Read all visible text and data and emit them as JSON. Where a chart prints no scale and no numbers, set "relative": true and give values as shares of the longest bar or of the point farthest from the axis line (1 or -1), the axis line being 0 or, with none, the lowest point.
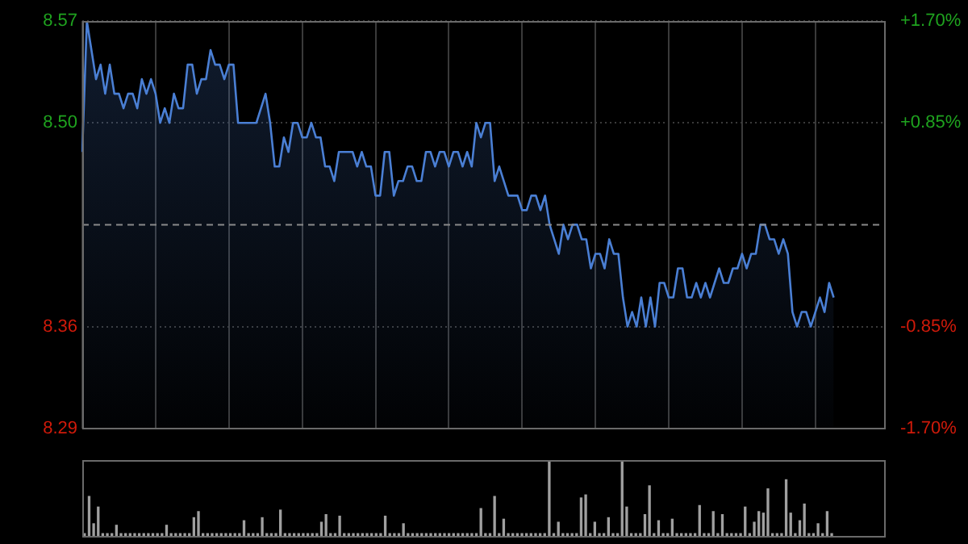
{
  "chart_data": [
    {
      "type": "area",
      "categories": [
        null,
        null,
        null,
        null,
        null,
        null,
        null,
        null,
        null,
        null,
        null,
        null,
        null,
        null,
        null,
        null,
        null,
        null,
        null,
        null,
        null,
        null,
        null,
        null,
        null,
        null,
        null,
        null,
        null,
        null,
        null,
        null,
        null,
        null,
        null,
        null,
        null,
        null,
        null,
        null,
        null,
        null,
        null,
        null,
        null,
        null,
        null,
        null,
        null,
        null,
        null,
        null,
        null,
        null,
        null,
        null,
        null,
        null,
        null,
        null,
        null,
        null,
        null,
        null,
        null,
        null,
        null,
        null,
        null,
        null,
        null,
        null,
        null,
        null,
        null,
        null,
        null,
        null,
        null,
        null,
        null,
        null,
        null,
        null,
        null,
        null,
        null,
        null,
        null,
        null,
        null,
        null,
        null,
        null,
        null,
        null,
        null,
        null,
        null,
        null,
        null,
        null,
        null,
        null,
        null,
        null,
        null,
        null,
        null,
        null,
        null,
        null,
        null,
        null,
        null,
        null,
        null,
        null,
        null,
        null,
        null,
        null,
        null,
        null,
        null,
        null,
        null,
        null,
        null,
        null,
        null,
        null,
        null,
        null,
        null,
        null,
        null,
        null,
        null,
        null,
        null,
        null,
        null,
        null,
        null,
        null,
        null,
        null,
        null,
        null,
        null,
        null,
        null,
        null,
        null,
        null,
        null,
        null,
        null,
        null,
        null,
        null,
        null,
        null,
        null,
        null,
        null,
        null,
        null,
        null,
        null,
        null,
        null,
        null,
        null,
        null
      ],
      "ylim": [
        8.29,
        8.57
      ],
      "yticks": [
        8.29,
        8.36,
        {
          "value": 8.5,
          "label": "8.50"
        },
        8.57
      ],
      "y2lim": [
        -1.7,
        1.7
      ],
      "y2ticks": [
        {
          "value": -1.7,
          "label": "-1.70%"
        },
        {
          "value": -0.85,
          "label": "-0.85%"
        },
        {
          "value": 0.85,
          "label": "+0.85%"
        },
        {
          "value": 1.7,
          "label": "+1.70%"
        }
      ],
      "tick_labels": "y",
      "grid": true,
      "ref_lines": [
        {
          "axis": "y",
          "value": 8.43,
          "line_style": "dashed",
          "color": "#8a8a8a"
        }
      ],
      "series": [
        {
          "color": "#4a7fd4",
          "values": [
            8.48,
            8.57,
            8.55,
            8.53,
            8.54,
            8.52,
            8.54,
            8.52,
            8.52,
            8.51,
            8.52,
            8.52,
            8.51,
            8.53,
            8.52,
            8.53,
            8.52,
            8.5,
            8.51,
            8.5,
            8.52,
            8.51,
            8.51,
            8.54,
            8.54,
            8.52,
            8.53,
            8.53,
            8.55,
            8.54,
            8.54,
            8.53,
            8.54,
            8.54,
            8.5,
            8.5,
            8.5,
            8.5,
            8.5,
            8.51,
            8.52,
            8.5,
            8.47,
            8.47,
            8.49,
            8.48,
            8.5,
            8.5,
            8.49,
            8.49,
            8.5,
            8.49,
            8.49,
            8.47,
            8.47,
            8.46,
            8.48,
            8.48,
            8.48,
            8.48,
            8.47,
            8.48,
            8.47,
            8.47,
            8.45,
            8.45,
            8.48,
            8.48,
            8.45,
            8.46,
            8.46,
            8.47,
            8.47,
            8.46,
            8.46,
            8.48,
            8.48,
            8.47,
            8.48,
            8.48,
            8.47,
            8.48,
            8.48,
            8.47,
            8.48,
            8.47,
            8.5,
            8.49,
            8.5,
            8.5,
            8.46,
            8.47,
            8.46,
            8.45,
            8.45,
            8.45,
            8.44,
            8.44,
            8.45,
            8.45,
            8.44,
            8.45,
            8.43,
            8.42,
            8.41,
            8.43,
            8.42,
            8.43,
            8.43,
            8.42,
            8.42,
            8.4,
            8.41,
            8.41,
            8.4,
            8.42,
            8.41,
            8.41,
            8.38,
            8.36,
            8.37,
            8.36,
            8.38,
            8.36,
            8.38,
            8.36,
            8.39,
            8.39,
            8.38,
            8.38,
            8.4,
            8.4,
            8.38,
            8.38,
            8.39,
            8.38,
            8.39,
            8.38,
            8.39,
            8.4,
            8.39,
            8.39,
            8.4,
            8.4,
            8.41,
            8.4,
            8.41,
            8.41,
            8.43,
            8.43,
            8.42,
            8.42,
            8.41,
            8.42,
            8.41,
            8.37,
            8.36,
            8.37,
            8.37,
            8.36,
            8.37,
            8.38,
            8.37,
            8.39,
            8.38,
            null,
            null,
            null,
            null,
            null,
            null,
            null,
            null,
            null,
            null,
            null
          ]
        }
      ]
    },
    {
      "type": "bar",
      "relative": true,
      "tick_labels": false,
      "grid": "x",
      "color": "#a0a0a0",
      "categories": [
        null,
        null,
        null,
        null,
        null,
        null,
        null,
        null,
        null,
        null,
        null,
        null,
        null,
        null,
        null,
        null,
        null,
        null,
        null,
        null,
        null,
        null,
        null,
        null,
        null,
        null,
        null,
        null,
        null,
        null,
        null,
        null,
        null,
        null,
        null,
        null,
        null,
        null,
        null,
        null,
        null,
        null,
        null,
        null,
        null,
        null,
        null,
        null,
        null,
        null,
        null,
        null,
        null,
        null,
        null,
        null,
        null,
        null,
        null,
        null,
        null,
        null,
        null,
        null,
        null,
        null,
        null,
        null,
        null,
        null,
        null,
        null,
        null,
        null,
        null,
        null,
        null,
        null,
        null,
        null,
        null,
        null,
        null,
        null,
        null,
        null,
        null,
        null,
        null,
        null,
        null,
        null,
        null,
        null,
        null,
        null,
        null,
        null,
        null,
        null,
        null,
        null,
        null,
        null,
        null,
        null,
        null,
        null,
        null,
        null,
        null,
        null,
        null,
        null,
        null,
        null,
        null,
        null,
        null,
        null,
        null,
        null,
        null,
        null,
        null,
        null,
        null,
        null,
        null,
        null,
        null,
        null,
        null,
        null,
        null,
        null,
        null,
        null,
        null,
        null,
        null,
        null,
        null,
        null,
        null,
        null,
        null,
        null,
        null,
        null,
        null,
        null,
        null,
        null,
        null,
        null,
        null,
        null,
        null,
        null,
        null,
        null,
        null,
        null,
        null,
        null,
        null,
        null,
        null,
        null,
        null,
        null,
        null,
        null,
        null,
        null
      ],
      "values": [
        0.03,
        0.52,
        0.16,
        0.38,
        0.03,
        0.03,
        0.03,
        0.14,
        0.03,
        0.03,
        0.03,
        0.03,
        0.03,
        0.03,
        0.03,
        0.03,
        0.03,
        0.03,
        0.14,
        0.03,
        0.03,
        0.03,
        0.03,
        0.03,
        0.24,
        0.32,
        0.03,
        0.03,
        0.03,
        0.03,
        0.03,
        0.03,
        0.03,
        0.03,
        0.03,
        0.2,
        0.03,
        0.03,
        0.03,
        0.24,
        0.03,
        0.03,
        0.03,
        0.34,
        0.03,
        0.03,
        0.03,
        0.03,
        0.03,
        0.03,
        0.03,
        0.03,
        0.18,
        0.28,
        0.03,
        0.03,
        0.26,
        0.03,
        0.03,
        0.03,
        0.03,
        0.03,
        0.03,
        0.03,
        0.03,
        0.03,
        0.26,
        0.03,
        0.03,
        0.03,
        0.16,
        0.03,
        0.03,
        0.03,
        0.03,
        0.03,
        0.03,
        0.03,
        0.03,
        0.03,
        0.03,
        0.03,
        0.03,
        0.03,
        0.03,
        0.03,
        0.03,
        0.36,
        0.03,
        0.03,
        0.52,
        0.03,
        0.22,
        0.03,
        0.03,
        0.03,
        0.03,
        0.03,
        0.03,
        0.03,
        0.03,
        0.03,
        1.0,
        0.03,
        0.18,
        0.03,
        0.03,
        0.03,
        0.03,
        0.5,
        0.54,
        0.03,
        0.18,
        0.03,
        0.03,
        0.24,
        0.03,
        0.03,
        1.0,
        0.38,
        0.03,
        0.03,
        0.03,
        0.28,
        0.66,
        0.03,
        0.2,
        0.03,
        0.03,
        0.22,
        0.03,
        0.03,
        0.03,
        0.03,
        0.03,
        0.4,
        0.03,
        0.03,
        0.32,
        0.03,
        0.28,
        0.03,
        0.03,
        0.03,
        0.03,
        0.38,
        0.03,
        0.18,
        0.32,
        0.3,
        0.62,
        0.03,
        0.03,
        0.03,
        0.74,
        0.3,
        0.03,
        0.2,
        0.42,
        0.03,
        0.03,
        0.16,
        0.03,
        0.32,
        0.03,
        null,
        null,
        null,
        null,
        null,
        null,
        null,
        null,
        null,
        null,
        null
      ]
    }
  ]
}
